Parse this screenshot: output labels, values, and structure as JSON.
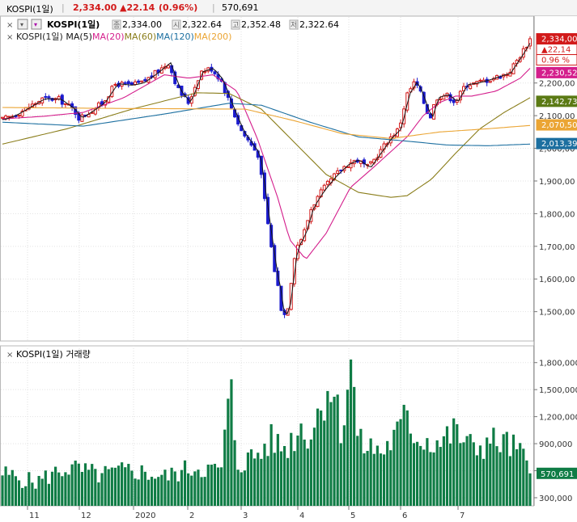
{
  "header": {
    "symbol": "KOSPI(1일)",
    "price": "2,334.00",
    "change": "▲22.14",
    "change_pct": "(0.96%)",
    "volume": "570,691"
  },
  "price_legend": {
    "symbol": "KOSPI(1일)",
    "close_tag": "종",
    "close": "2,334.00",
    "open_tag": "시",
    "open": "2,322.64",
    "high_tag": "고",
    "high": "2,352.48",
    "low_tag": "저",
    "low": "2,322.64",
    "ma_line": [
      "KOSPI(1일)",
      "MA(5)",
      "MA(20)",
      "MA(60)",
      "MA(120)",
      "MA(200)"
    ]
  },
  "volume_legend": {
    "title": "KOSPI(1일) 거래량"
  },
  "colors": {
    "up": "#d21a1a",
    "down": "#1a1acd",
    "volume": "#0f7c45",
    "ma5": "#151515",
    "ma20": "#d41e8c",
    "ma60": "#8a7d1a",
    "ma120": "#1c6fa0",
    "ma200": "#eba534"
  },
  "chart_data": [
    {
      "type": "line",
      "title": "KOSPI(1일)",
      "x_ticks": [
        "11",
        "12",
        "2020",
        "2",
        "3",
        "4",
        "5",
        "6",
        "7"
      ],
      "y_ticks": [
        "1,500,00",
        "1,600,00",
        "1,700,00",
        "1,800,00",
        "1,900,00",
        "2,000,00",
        "2,100,00",
        "2,200,00"
      ],
      "ylim": [
        1420,
        2370
      ],
      "grid": true,
      "series": [
        {
          "name": "KOSPI(1일)",
          "x": [
            0,
            15,
            30,
            50,
            70,
            88,
            95,
            110,
            124,
            140,
            158,
            172,
            188,
            205,
            218,
            230,
            245,
            258,
            270,
            283,
            296,
            305,
            316,
            328,
            336,
            342,
            346,
            352,
            362,
            372,
            382,
            395,
            410,
            425,
            438,
            452,
            465,
            478,
            490,
            500,
            510,
            518,
            528,
            536,
            548,
            560,
            572,
            585,
            600,
            612,
            625,
            640,
            652
          ],
          "y": [
            2088,
            2102,
            2123,
            2152,
            2150,
            2118,
            2092,
            2115,
            2140,
            2198,
            2193,
            2200,
            2228,
            2262,
            2175,
            2140,
            2235,
            2245,
            2210,
            2125,
            2050,
            2020,
            1980,
            1770,
            1630,
            1558,
            1482,
            1505,
            1692,
            1737,
            1820,
            1870,
            1915,
            1950,
            1965,
            1940,
            1985,
            2030,
            2060,
            2165,
            2205,
            2160,
            2090,
            2155,
            2165,
            2142,
            2195,
            2200,
            2210,
            2220,
            2230,
            2285,
            2334
          ]
        },
        {
          "name": "MA(20)",
          "x": [
            0,
            50,
            100,
            150,
            200,
            230,
            260,
            290,
            315,
            340,
            355,
            375,
            400,
            430,
            460,
            480,
            500,
            520,
            540,
            560,
            580,
            610,
            640,
            652
          ],
          "y": [
            2090,
            2098,
            2110,
            2155,
            2225,
            2215,
            2225,
            2175,
            2030,
            1850,
            1720,
            1660,
            1740,
            1880,
            1945,
            1990,
            2035,
            2100,
            2140,
            2160,
            2160,
            2175,
            2215,
            2245
          ]
        },
        {
          "name": "MA(60)",
          "x": [
            0,
            80,
            160,
            240,
            280,
            320,
            360,
            400,
            440,
            480,
            500,
            530,
            560,
            590,
            620,
            652
          ],
          "y": [
            2013,
            2060,
            2120,
            2170,
            2168,
            2120,
            2020,
            1920,
            1865,
            1850,
            1855,
            1905,
            1985,
            2060,
            2110,
            2155
          ]
        },
        {
          "name": "MA(120)",
          "x": [
            0,
            100,
            200,
            280,
            320,
            380,
            440,
            500,
            550,
            600,
            652
          ],
          "y": [
            2080,
            2068,
            2105,
            2138,
            2132,
            2080,
            2035,
            2022,
            2010,
            2008,
            2013
          ]
        },
        {
          "name": "MA(200)",
          "x": [
            0,
            150,
            300,
            360,
            420,
            480,
            540,
            600,
            652
          ],
          "y": [
            2125,
            2122,
            2120,
            2085,
            2045,
            2030,
            2050,
            2060,
            2070
          ]
        }
      ],
      "price_tags": [
        "2,334,00",
        "▲22,14",
        "0.96 %",
        "2,230,52",
        "2,142,73",
        "2,070,50",
        "2,013,39"
      ]
    },
    {
      "type": "bar",
      "title": "KOSPI(1일) 거래량",
      "y_ticks": [
        "300,000",
        "600,000",
        "900,000",
        "1,200,000",
        "1,500,000",
        "1,800,000"
      ],
      "ylim": [
        210000,
        1950000
      ],
      "last_value_tag": "570,691",
      "x": [
        0,
        40,
        80,
        120,
        160,
        200,
        240,
        270,
        282,
        290,
        320,
        330,
        350,
        370,
        380,
        405,
        420,
        430,
        440,
        470,
        490,
        500,
        510,
        540,
        560,
        580,
        600,
        620,
        640,
        652
      ],
      "values": [
        580000,
        480000,
        650000,
        560000,
        620000,
        540000,
        660000,
        600000,
        1560000,
        680000,
        820000,
        960000,
        870000,
        1120000,
        1000000,
        1650000,
        1050000,
        1900000,
        920000,
        830000,
        1050000,
        1250000,
        1000000,
        930000,
        1060000,
        860000,
        940000,
        930000,
        820000,
        570691
      ]
    }
  ]
}
